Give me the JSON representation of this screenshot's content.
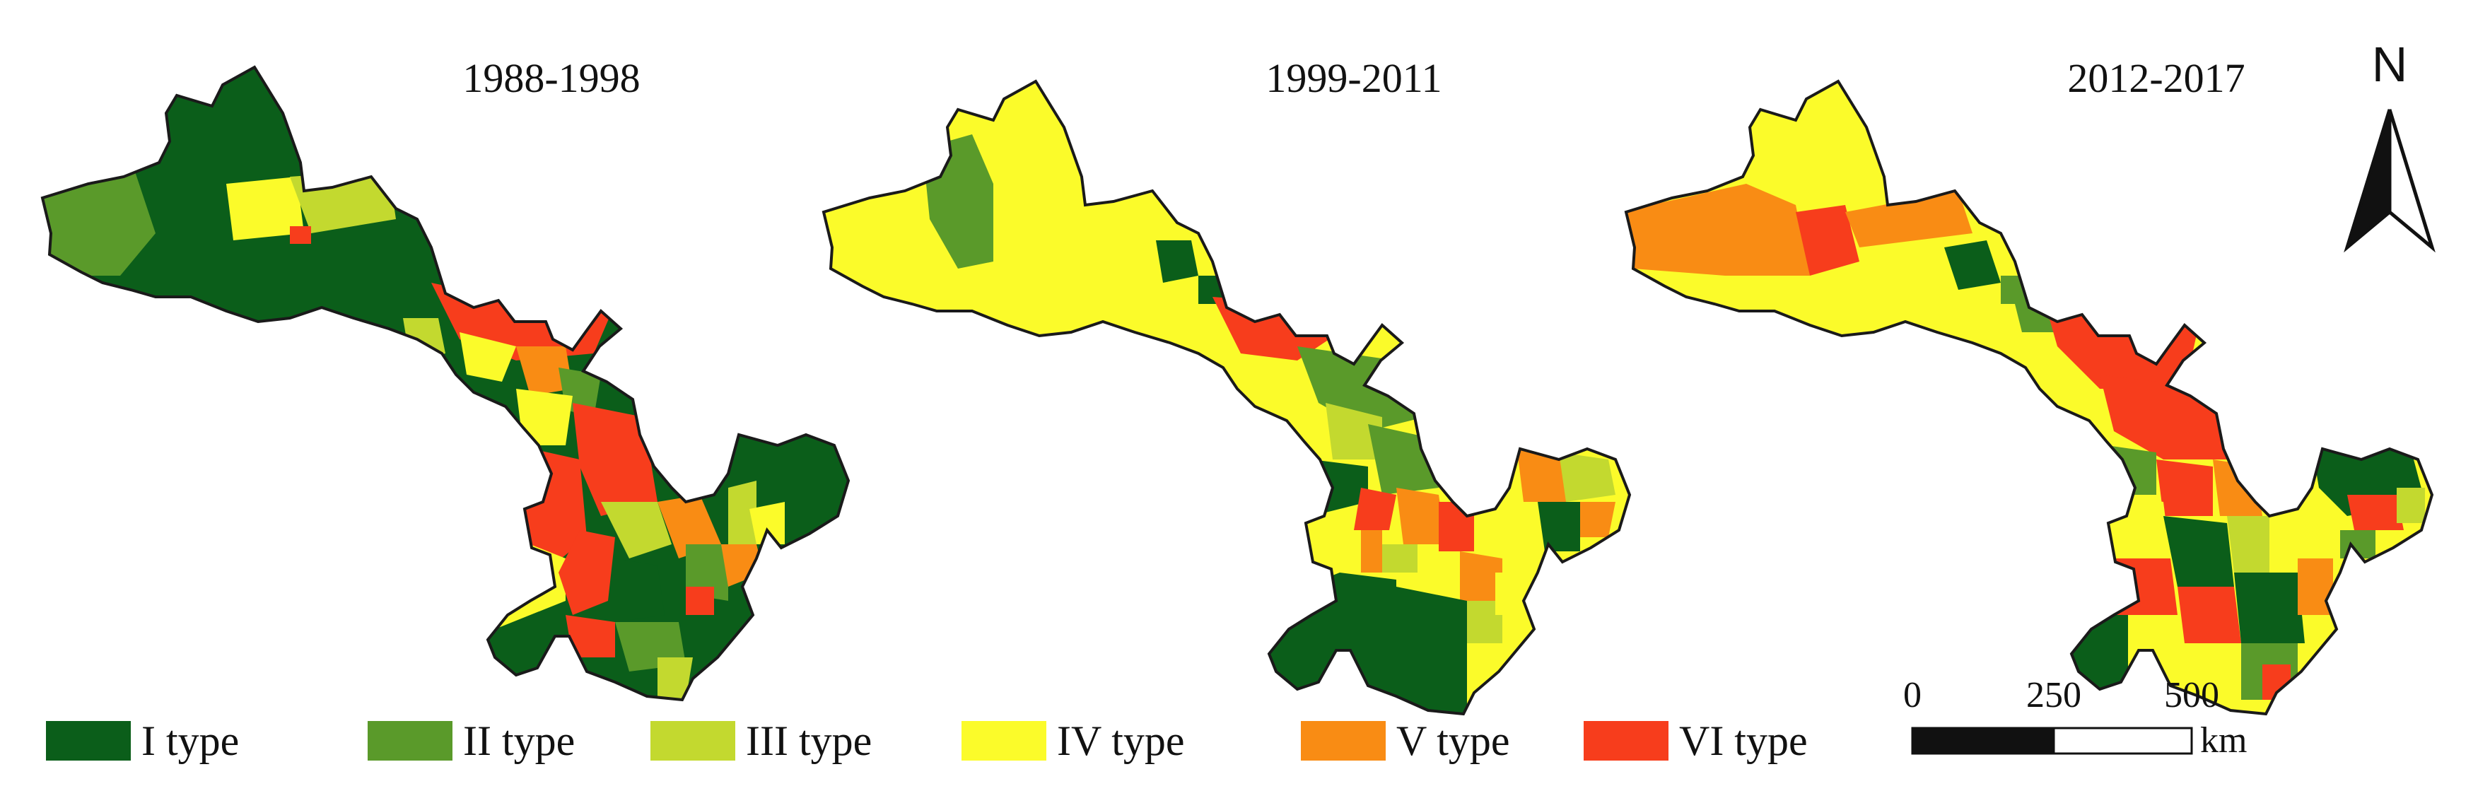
{
  "panels": [
    {
      "title": "1988-1998"
    },
    {
      "title": "1999-2011"
    },
    {
      "title": "2012-2017"
    }
  ],
  "legend": [
    {
      "label": "I type",
      "color": "#0b5e1a"
    },
    {
      "label": "II type",
      "color": "#5a9a2a"
    },
    {
      "label": "III type",
      "color": "#c3d92f"
    },
    {
      "label": "IV type",
      "color": "#fbfb2a"
    },
    {
      "label": "V type",
      "color": "#f98c14"
    },
    {
      "label": "VI type",
      "color": "#f73d1c"
    }
  ],
  "north_arrow": {
    "label": "N"
  },
  "scale_bar": {
    "ticks": [
      "0",
      "250",
      "500"
    ],
    "unit": "km"
  },
  "colors": {
    "outline": "#1a1a1a"
  }
}
